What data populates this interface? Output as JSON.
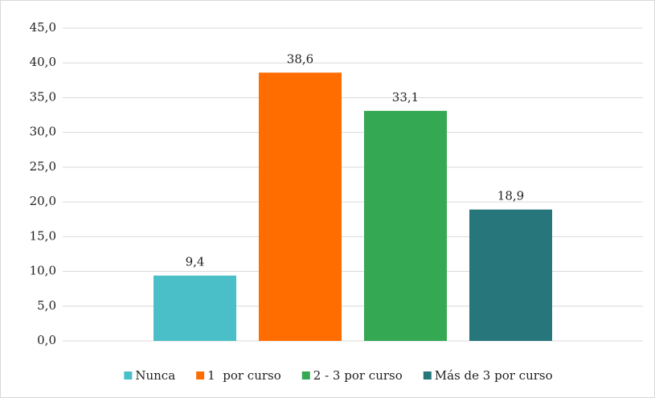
{
  "chart_data": {
    "type": "bar",
    "categories": [
      null
    ],
    "series": [
      {
        "name": "Nunca",
        "color": "#4bbfc8",
        "values": [
          9.4
        ],
        "value_labels": [
          "9,4"
        ]
      },
      {
        "name": "1  por curso",
        "color": "#ff6d00",
        "values": [
          38.6
        ],
        "value_labels": [
          "38,6"
        ]
      },
      {
        "name": "2 - 3 por curso",
        "color": "#34a853",
        "values": [
          33.1
        ],
        "value_labels": [
          "33,1"
        ]
      },
      {
        "name": "Más de 3 por curso",
        "color": "#26767c",
        "values": [
          18.9
        ],
        "value_labels": [
          "18,9"
        ]
      }
    ],
    "ylim": [
      0,
      45
    ],
    "yticks": [
      {
        "value": 0,
        "label": "0,0"
      },
      {
        "value": 5,
        "label": "5,0"
      },
      {
        "value": 10,
        "label": "10,0"
      },
      {
        "value": 15,
        "label": "15,0"
      },
      {
        "value": 20,
        "label": "20,0"
      },
      {
        "value": 25,
        "label": "25,0"
      },
      {
        "value": 30,
        "label": "30,0"
      },
      {
        "value": 35,
        "label": "35,0"
      },
      {
        "value": 40,
        "label": "40,0"
      },
      {
        "value": 45,
        "label": "45,0"
      }
    ],
    "grid": true,
    "legend": "bottom"
  }
}
